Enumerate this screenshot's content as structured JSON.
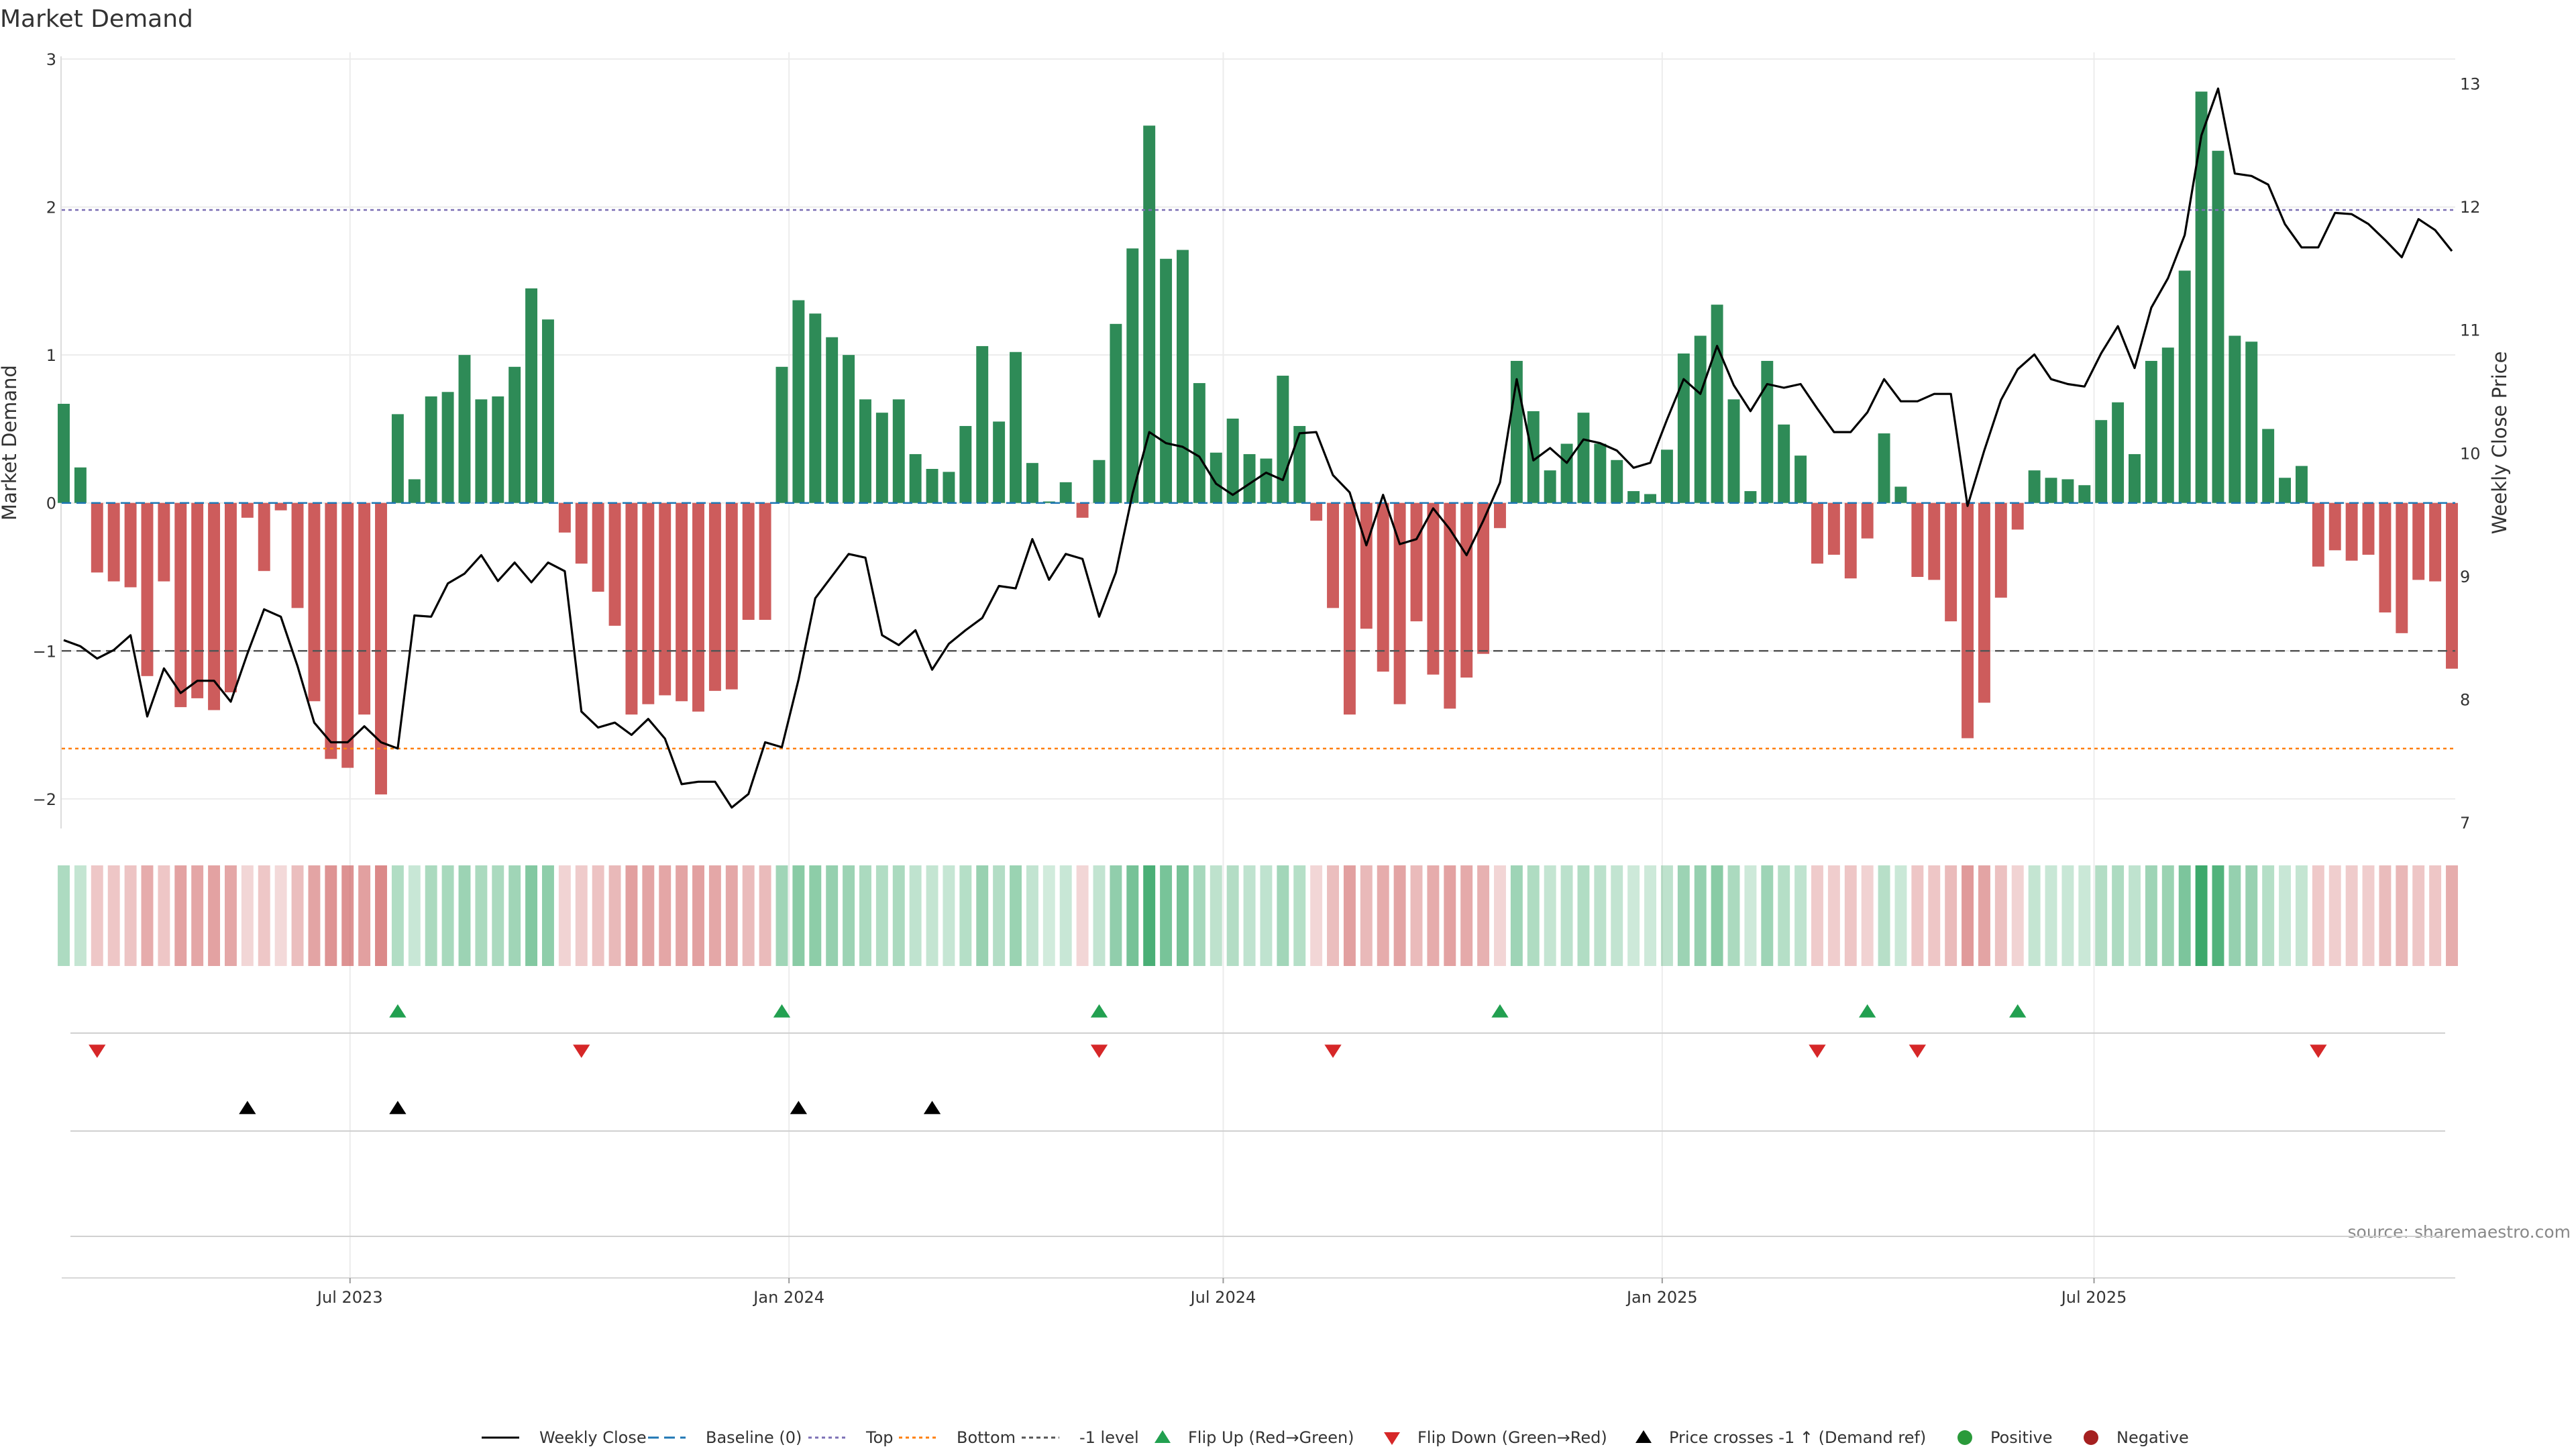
{
  "chart_data": {
    "type": "bar",
    "title": "Market Demand",
    "ylabel": "Market Demand",
    "y2label": "Weekly Close Price",
    "ylim": [
      -2.2,
      3
    ],
    "y2lim": [
      6.95,
      13.2
    ],
    "yticks": [
      "3",
      "2",
      "1",
      "0",
      "−1",
      "−2"
    ],
    "y2ticks": [
      "13",
      "12",
      "11",
      "10",
      "9",
      "8",
      "7"
    ],
    "x_start": "2023-03-03",
    "xticks": [
      "Jul 2023",
      "Jan 2024",
      "Jul 2024",
      "Jan 2025",
      "Jul 2025"
    ],
    "reference_lines": [
      {
        "name": "Baseline (0)",
        "value": 0,
        "color": "#1f77b4",
        "style": "dashed"
      },
      {
        "name": "Top",
        "value": 1.98,
        "color": "#7b6fb5",
        "style": "dotted"
      },
      {
        "name": "Bottom",
        "value": -1.66,
        "color": "#ff7f0e",
        "style": "dotted"
      },
      {
        "name": "-1 level",
        "value": -1,
        "color": "#555555",
        "style": "dashed"
      }
    ],
    "demand": [
      0.67,
      0.24,
      -0.47,
      -0.53,
      -0.57,
      -1.17,
      -0.53,
      -1.38,
      -1.32,
      -1.4,
      -1.28,
      -0.1,
      -0.46,
      -0.05,
      -0.71,
      -1.34,
      -1.73,
      -1.79,
      -1.43,
      -1.97,
      0.6,
      0.16,
      0.72,
      0.75,
      1.0,
      0.7,
      0.72,
      0.92,
      1.45,
      1.24,
      -0.2,
      -0.41,
      -0.6,
      -0.83,
      -1.43,
      -1.36,
      -1.3,
      -1.34,
      -1.41,
      -1.27,
      -1.26,
      -0.79,
      -0.79,
      0.92,
      1.37,
      1.28,
      1.12,
      1.0,
      0.7,
      0.61,
      0.7,
      0.33,
      0.23,
      0.21,
      0.52,
      1.06,
      0.55,
      1.02,
      0.27,
      0.01,
      0.14,
      -0.1,
      0.29,
      1.21,
      1.72,
      2.55,
      1.65,
      1.71,
      0.81,
      0.34,
      0.57,
      0.33,
      0.3,
      0.86,
      0.52,
      -0.12,
      -0.71,
      -1.43,
      -0.85,
      -1.14,
      -1.36,
      -0.8,
      -1.16,
      -1.39,
      -1.18,
      -1.02,
      -0.17,
      0.96,
      0.62,
      0.22,
      0.4,
      0.61,
      0.4,
      0.29,
      0.08,
      0.06,
      0.36,
      1.01,
      1.13,
      1.34,
      0.7,
      0.08,
      0.96,
      0.53,
      0.32,
      -0.41,
      -0.35,
      -0.51,
      -0.24,
      0.47,
      0.11,
      -0.5,
      -0.52,
      -0.8,
      -1.59,
      -1.35,
      -0.64,
      -0.18,
      0.22,
      0.17,
      0.16,
      0.12,
      0.56,
      0.68,
      0.33,
      0.96,
      1.05,
      1.57,
      2.78,
      2.38,
      1.13,
      1.09,
      0.5,
      0.17,
      0.25,
      -0.43,
      -0.32,
      -0.39,
      -0.35,
      -0.74,
      -0.88,
      -0.52,
      -0.53,
      -1.12
    ],
    "price": [
      8.48,
      8.43,
      8.33,
      8.4,
      8.52,
      7.86,
      8.25,
      8.05,
      8.15,
      8.15,
      7.98,
      8.37,
      8.73,
      8.67,
      8.27,
      7.81,
      7.65,
      7.65,
      7.78,
      7.65,
      7.6,
      8.68,
      8.67,
      8.94,
      9.02,
      9.17,
      8.96,
      9.11,
      8.95,
      9.11,
      9.04,
      7.9,
      7.77,
      7.81,
      7.71,
      7.84,
      7.68,
      7.31,
      7.33,
      7.33,
      7.12,
      7.23,
      7.65,
      7.61,
      8.16,
      8.82,
      9.0,
      9.18,
      9.15,
      8.52,
      8.44,
      8.56,
      8.24,
      8.45,
      8.56,
      8.66,
      8.92,
      8.9,
      9.3,
      8.97,
      9.18,
      9.14,
      8.67,
      9.03,
      9.67,
      10.17,
      10.08,
      10.05,
      9.97,
      9.75,
      9.66,
      9.75,
      9.84,
      9.78,
      10.16,
      10.17,
      9.82,
      9.68,
      9.25,
      9.66,
      9.26,
      9.3,
      9.55,
      9.38,
      9.17,
      9.45,
      9.76,
      10.6,
      9.94,
      10.04,
      9.92,
      10.11,
      10.08,
      10.02,
      9.88,
      9.92,
      10.27,
      10.6,
      10.48,
      10.87,
      10.55,
      10.34,
      10.56,
      10.53,
      10.56,
      10.36,
      10.17,
      10.17,
      10.33,
      10.6,
      10.42,
      10.42,
      10.48,
      10.48,
      9.57,
      10.02,
      10.43,
      10.68,
      10.8,
      10.6,
      10.56,
      10.54,
      10.81,
      11.03,
      10.69,
      11.18,
      11.42,
      11.77,
      12.58,
      12.96,
      12.27,
      12.25,
      12.18,
      11.86,
      11.67,
      11.67,
      11.95,
      11.94,
      11.86,
      11.73,
      11.59,
      11.9,
      11.81,
      11.64
    ],
    "bands": [
      {
        "name": "Flip Up (Red→Green)",
        "indices": [
          20,
          43,
          62,
          86,
          108,
          117
        ]
      },
      {
        "name": "Flip Down (Green→Red)",
        "indices": [
          2,
          31,
          62,
          76,
          105,
          111,
          135
        ]
      },
      {
        "name": "Price crosses -1 ↑ (Demand ref)",
        "indices": [
          11,
          20,
          44,
          52
        ]
      }
    ],
    "colors": {
      "positive": "#2e8b57",
      "negative": "#cd5c5c",
      "price": "#000000",
      "up": "#22a050",
      "down": "#d62728"
    },
    "legend": [
      "Weekly Close",
      "Baseline (0)",
      "Top",
      "Bottom",
      "-1 level",
      "Flip Up (Red→Green)",
      "Flip Down (Green→Red)",
      "Price crosses -1 ↑ (Demand ref)",
      "Positive",
      "Negative"
    ],
    "legend_position": "bottom-center",
    "source": "source: sharemaestro.com"
  }
}
